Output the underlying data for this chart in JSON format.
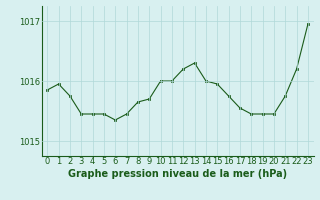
{
  "x": [
    0,
    1,
    2,
    3,
    4,
    5,
    6,
    7,
    8,
    9,
    10,
    11,
    12,
    13,
    14,
    15,
    16,
    17,
    18,
    19,
    20,
    21,
    22,
    23
  ],
  "y": [
    1015.85,
    1015.95,
    1015.75,
    1015.45,
    1015.45,
    1015.45,
    1015.35,
    1015.45,
    1015.65,
    1015.7,
    1016.0,
    1016.0,
    1016.2,
    1016.3,
    1016.0,
    1015.95,
    1015.75,
    1015.55,
    1015.45,
    1015.45,
    1015.45,
    1015.75,
    1016.2,
    1016.95
  ],
  "line_color": "#1a5c1a",
  "marker_color": "#1a5c1a",
  "bg_color": "#d8f0f0",
  "grid_color": "#b0d8d8",
  "axis_label_color": "#1a5c1a",
  "tick_label_color": "#1a5c1a",
  "xlabel": "Graphe pression niveau de la mer (hPa)",
  "ylim": [
    1014.75,
    1017.25
  ],
  "yticks": [
    1015,
    1016,
    1017
  ],
  "xlim": [
    -0.5,
    23.5
  ],
  "font_size_label": 7,
  "font_size_tick": 6
}
